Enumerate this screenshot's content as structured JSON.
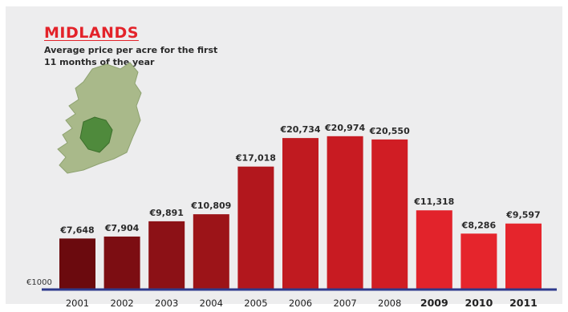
{
  "chart_data": {
    "type": "bar",
    "title": "MIDLANDS",
    "subtitle": "Average price per acre for the first 11 months of the year",
    "categories": [
      "2001",
      "2002",
      "2003",
      "2004",
      "2005",
      "2006",
      "2007",
      "2008",
      "2009",
      "2010",
      "2011"
    ],
    "values": [
      7648,
      7904,
      9891,
      10809,
      17018,
      20734,
      20974,
      20550,
      11318,
      8286,
      9597
    ],
    "value_labels": [
      "€7,648",
      "€7,904",
      "€9,891",
      "€10,809",
      "€17,018",
      "€20,734",
      "€20,974",
      "€20,550",
      "€11,318",
      "€8,286",
      "€9,597"
    ],
    "bold_categories": [
      "2009",
      "2010",
      "2011"
    ],
    "baseline_label": "€1000",
    "ylim": [
      1000,
      22000
    ],
    "xlabel": "",
    "ylabel": "",
    "grid": false,
    "colors": [
      "#6b0a0e",
      "#7c0d12",
      "#8c1116",
      "#9c1418",
      "#b2171d",
      "#c01a20",
      "#c81b22",
      "#d01d24",
      "#e2232b",
      "#e5252c",
      "#e5252c"
    ],
    "axis_color": "#2e3a8c",
    "map": {
      "name": "ireland-map-icon",
      "land_color": "#a9b98a",
      "region_color": "#4f8a3c"
    }
  }
}
